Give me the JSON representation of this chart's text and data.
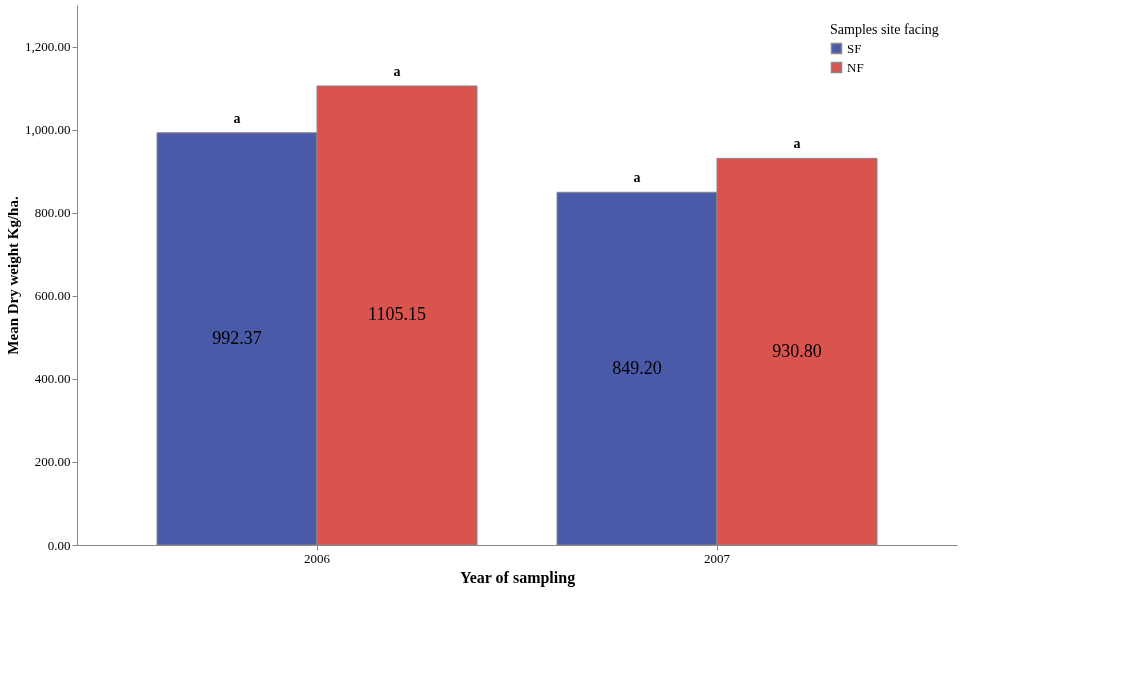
{
  "chart_data": {
    "type": "bar",
    "xlabel": "Year of sampling",
    "ylabel": "Mean Dry weight Kg/ha.",
    "legend_title": "Samples site facing",
    "categories": [
      "2006",
      "2007"
    ],
    "series": [
      {
        "name": "SF",
        "color": "#4a5aa8",
        "values": [
          992.37,
          849.2
        ],
        "value_labels": [
          "992.37",
          "849.20"
        ]
      },
      {
        "name": "NF",
        "color": "#d9534f",
        "values": [
          1105.15,
          930.8
        ],
        "value_labels": [
          "1105.15",
          "930.80"
        ]
      }
    ],
    "ylim": [
      0,
      1300
    ],
    "yticks": [
      {
        "value": 0,
        "label": "0.00"
      },
      {
        "value": 200,
        "label": "200.00"
      },
      {
        "value": 400,
        "label": "400.00"
      },
      {
        "value": 600,
        "label": "600.00"
      },
      {
        "value": 800,
        "label": "800.00"
      },
      {
        "value": 1000,
        "label": "1,000.00"
      },
      {
        "value": 1200,
        "label": "1,200.00"
      }
    ],
    "annotations": [
      "a",
      "a",
      "a",
      "a"
    ],
    "legend": "top right",
    "grid": false
  }
}
